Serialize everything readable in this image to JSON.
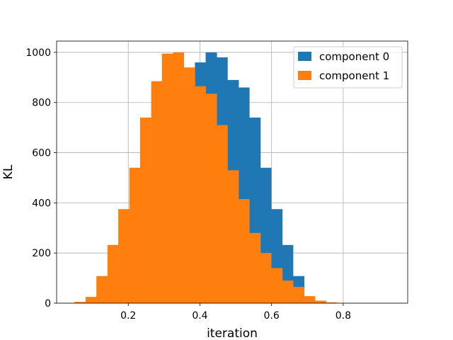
{
  "chart_data": {
    "type": "histogram",
    "title": "",
    "xlabel": "iteration",
    "ylabel": "KL",
    "xlim": [
      0.0,
      0.98
    ],
    "ylim": [
      0,
      1045
    ],
    "xticks": [
      0.2,
      0.4,
      0.6,
      0.8
    ],
    "xtick_labels": [
      "0.2",
      "0.4",
      "0.6",
      "0.8"
    ],
    "yticks": [
      0,
      200,
      400,
      600,
      800,
      1000
    ],
    "ytick_labels": [
      "0",
      "200",
      "400",
      "600",
      "800",
      "1000"
    ],
    "grid": true,
    "legend_position": "top-right",
    "series": [
      {
        "name": "component 0",
        "color": "#1f77b4",
        "bins": [
          {
            "x0": 0.05,
            "x1": 0.081,
            "count": 3
          },
          {
            "x0": 0.081,
            "x1": 0.111,
            "count": 10
          },
          {
            "x0": 0.111,
            "x1": 0.142,
            "count": 28
          },
          {
            "x0": 0.142,
            "x1": 0.172,
            "count": 70
          },
          {
            "x0": 0.172,
            "x1": 0.203,
            "count": 140
          },
          {
            "x0": 0.203,
            "x1": 0.233,
            "count": 270
          },
          {
            "x0": 0.233,
            "x1": 0.264,
            "count": 400
          },
          {
            "x0": 0.264,
            "x1": 0.294,
            "count": 530
          },
          {
            "x0": 0.294,
            "x1": 0.325,
            "count": 710
          },
          {
            "x0": 0.325,
            "x1": 0.355,
            "count": 830
          },
          {
            "x0": 0.355,
            "x1": 0.386,
            "count": 865
          },
          {
            "x0": 0.386,
            "x1": 0.416,
            "count": 960
          },
          {
            "x0": 0.416,
            "x1": 0.447,
            "count": 1000
          },
          {
            "x0": 0.447,
            "x1": 0.477,
            "count": 980
          },
          {
            "x0": 0.477,
            "x1": 0.508,
            "count": 890
          },
          {
            "x0": 0.508,
            "x1": 0.538,
            "count": 860
          },
          {
            "x0": 0.538,
            "x1": 0.569,
            "count": 740
          },
          {
            "x0": 0.569,
            "x1": 0.599,
            "count": 540
          },
          {
            "x0": 0.599,
            "x1": 0.63,
            "count": 375
          },
          {
            "x0": 0.63,
            "x1": 0.66,
            "count": 232
          },
          {
            "x0": 0.66,
            "x1": 0.691,
            "count": 108
          },
          {
            "x0": 0.691,
            "x1": 0.721,
            "count": 25
          },
          {
            "x0": 0.721,
            "x1": 0.752,
            "count": 5
          }
        ]
      },
      {
        "name": "component 1",
        "color": "#ff7f0e",
        "bins": [
          {
            "x0": 0.05,
            "x1": 0.081,
            "count": 5
          },
          {
            "x0": 0.081,
            "x1": 0.111,
            "count": 25
          },
          {
            "x0": 0.111,
            "x1": 0.142,
            "count": 108
          },
          {
            "x0": 0.142,
            "x1": 0.172,
            "count": 232
          },
          {
            "x0": 0.172,
            "x1": 0.203,
            "count": 375
          },
          {
            "x0": 0.203,
            "x1": 0.233,
            "count": 540
          },
          {
            "x0": 0.233,
            "x1": 0.264,
            "count": 740
          },
          {
            "x0": 0.264,
            "x1": 0.294,
            "count": 885
          },
          {
            "x0": 0.294,
            "x1": 0.325,
            "count": 995
          },
          {
            "x0": 0.325,
            "x1": 0.355,
            "count": 1000
          },
          {
            "x0": 0.355,
            "x1": 0.386,
            "count": 940
          },
          {
            "x0": 0.386,
            "x1": 0.416,
            "count": 865
          },
          {
            "x0": 0.416,
            "x1": 0.447,
            "count": 835
          },
          {
            "x0": 0.447,
            "x1": 0.477,
            "count": 710
          },
          {
            "x0": 0.477,
            "x1": 0.508,
            "count": 530
          },
          {
            "x0": 0.508,
            "x1": 0.538,
            "count": 415
          },
          {
            "x0": 0.538,
            "x1": 0.569,
            "count": 280
          },
          {
            "x0": 0.569,
            "x1": 0.599,
            "count": 200
          },
          {
            "x0": 0.599,
            "x1": 0.63,
            "count": 140
          },
          {
            "x0": 0.63,
            "x1": 0.66,
            "count": 90
          },
          {
            "x0": 0.66,
            "x1": 0.691,
            "count": 65
          },
          {
            "x0": 0.691,
            "x1": 0.721,
            "count": 28
          },
          {
            "x0": 0.721,
            "x1": 0.752,
            "count": 10
          },
          {
            "x0": 0.752,
            "x1": 0.782,
            "count": 3
          }
        ]
      }
    ]
  }
}
